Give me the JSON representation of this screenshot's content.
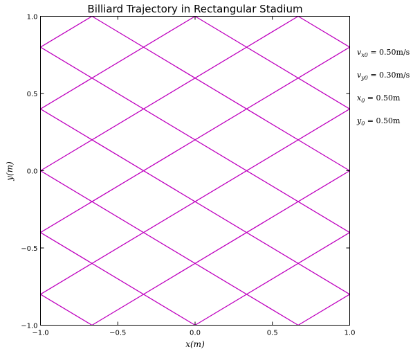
{
  "chart_data": {
    "type": "line",
    "title": "Billiard Trajectory in Rectangular Stadium",
    "xlabel": "x(m)",
    "ylabel": "y(m)",
    "xlim": [
      -1.0,
      1.0
    ],
    "ylim": [
      -1.0,
      1.0
    ],
    "grid": false,
    "x_ticks": [
      -1.0,
      -0.5,
      0.0,
      0.5,
      1.0
    ],
    "x_tick_labels": [
      "−1.0",
      "−0.5",
      "0.0",
      "0.5",
      "1.0"
    ],
    "y_ticks": [
      -1.0,
      -0.5,
      0.0,
      0.5,
      1.0
    ],
    "y_tick_labels": [
      "−1.0",
      "−0.5",
      "0.0",
      "0.5",
      "1.0"
    ],
    "line_color": "#bf00bf",
    "segments": [
      {
        "x": [
          -1.0,
          -0.6667
        ],
        "y": [
          0.8,
          1.0
        ]
      },
      {
        "x": [
          -1.0,
          0.0
        ],
        "y": [
          0.4,
          1.0
        ]
      },
      {
        "x": [
          -1.0,
          0.6667
        ],
        "y": [
          0.0,
          1.0
        ]
      },
      {
        "x": [
          -1.0,
          1.0
        ],
        "y": [
          -0.4,
          0.8
        ]
      },
      {
        "x": [
          -1.0,
          1.0
        ],
        "y": [
          -0.8,
          0.4
        ]
      },
      {
        "x": [
          -0.6667,
          1.0
        ],
        "y": [
          -1.0,
          0.0
        ]
      },
      {
        "x": [
          0.0,
          1.0
        ],
        "y": [
          -1.0,
          -0.4
        ]
      },
      {
        "x": [
          0.6667,
          1.0
        ],
        "y": [
          -1.0,
          -0.8
        ]
      },
      {
        "x": [
          -1.0,
          -0.6667
        ],
        "y": [
          -0.8,
          -1.0
        ]
      },
      {
        "x": [
          -1.0,
          0.0
        ],
        "y": [
          -0.4,
          -1.0
        ]
      },
      {
        "x": [
          -1.0,
          0.6667
        ],
        "y": [
          0.0,
          -1.0
        ]
      },
      {
        "x": [
          -1.0,
          1.0
        ],
        "y": [
          0.4,
          -0.8
        ]
      },
      {
        "x": [
          -1.0,
          1.0
        ],
        "y": [
          0.8,
          -0.4
        ]
      },
      {
        "x": [
          -0.6667,
          1.0
        ],
        "y": [
          1.0,
          0.0
        ]
      },
      {
        "x": [
          0.0,
          1.0
        ],
        "y": [
          1.0,
          0.4
        ]
      },
      {
        "x": [
          0.6667,
          1.0
        ],
        "y": [
          1.0,
          0.8
        ]
      }
    ],
    "annotations": [
      {
        "text": "vx0 = 0.50m/s"
      },
      {
        "text": "vy0 = 0.30m/s"
      },
      {
        "text": "x0 = 0.50m"
      },
      {
        "text": "y0 = 0.50m"
      }
    ]
  }
}
